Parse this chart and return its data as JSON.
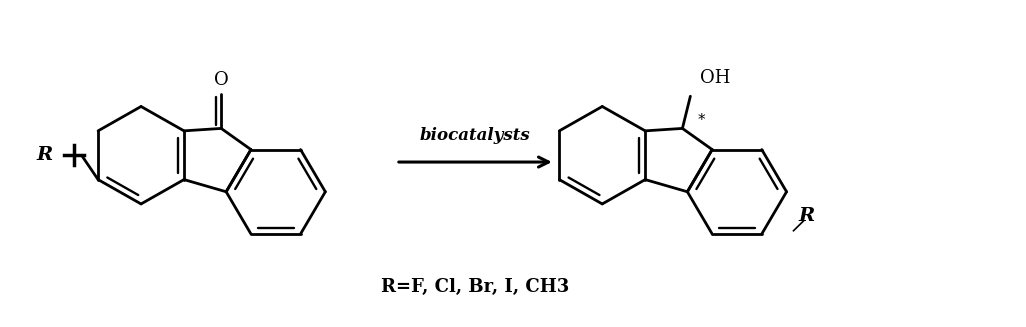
{
  "background_color": "#ffffff",
  "biocatalysts_label": "biocatalysts",
  "substituent_label": "R=F, Cl, Br, I, CH₃",
  "substituent_display": "R=F, Cl, Br, I, CH3",
  "left_O_label": "O",
  "right_OH_label": "OH",
  "left_R_label": "R",
  "right_R_label": "R",
  "star_label": "*",
  "figsize": [
    10.26,
    3.27
  ],
  "dpi": 100,
  "bond_lw": 2.0,
  "ring_scale": 0.5
}
